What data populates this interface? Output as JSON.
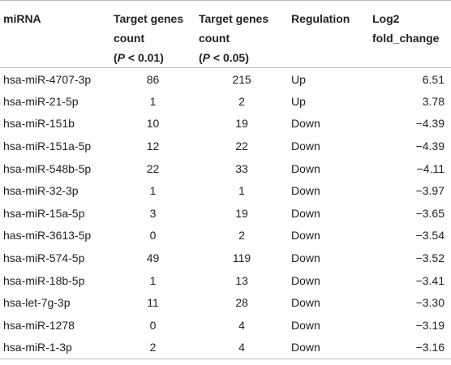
{
  "table": {
    "header": [
      {
        "lines": [
          "miRNA"
        ]
      },
      {
        "lines": [
          "Target genes",
          "count"
        ],
        "note": [
          "(",
          "P",
          " < 0.01)"
        ]
      },
      {
        "lines": [
          "Target genes",
          "count"
        ],
        "note": [
          "(",
          "P",
          " < 0.05)"
        ]
      },
      {
        "lines": [
          "Regulation"
        ]
      },
      {
        "lines": [
          "Log2",
          "fold_change"
        ]
      }
    ],
    "rows": [
      [
        "hsa-miR-4707-3p",
        "86",
        "215",
        "Up",
        "6.51"
      ],
      [
        "hsa-miR-21-5p",
        "1",
        "2",
        "Up",
        "3.78"
      ],
      [
        "hsa-miR-151b",
        "10",
        "19",
        "Down",
        "−4.39"
      ],
      [
        "hsa-miR-151a-5p",
        "12",
        "22",
        "Down",
        "−4.39"
      ],
      [
        "hsa-miR-548b-5p",
        "22",
        "33",
        "Down",
        "−4.11"
      ],
      [
        "hsa-miR-32-3p",
        "1",
        "1",
        "Down",
        "−3.97"
      ],
      [
        "hsa-miR-15a-5p",
        "3",
        "19",
        "Down",
        "−3.65"
      ],
      [
        "has-miR-3613-5p",
        "0",
        "2",
        "Down",
        "−3.54"
      ],
      [
        "hsa-miR-574-5p",
        "49",
        "119",
        "Down",
        "−3.52"
      ],
      [
        "hsa-miR-18b-5p",
        "1",
        "13",
        "Down",
        "−3.41"
      ],
      [
        "hsa-let-7g-3p",
        "11",
        "28",
        "Down",
        "−3.30"
      ],
      [
        "hsa-miR-1278",
        "0",
        "4",
        "Down",
        "−3.19"
      ],
      [
        "hsa-miR-1-3p",
        "2",
        "4",
        "Down",
        "−3.16"
      ]
    ]
  }
}
